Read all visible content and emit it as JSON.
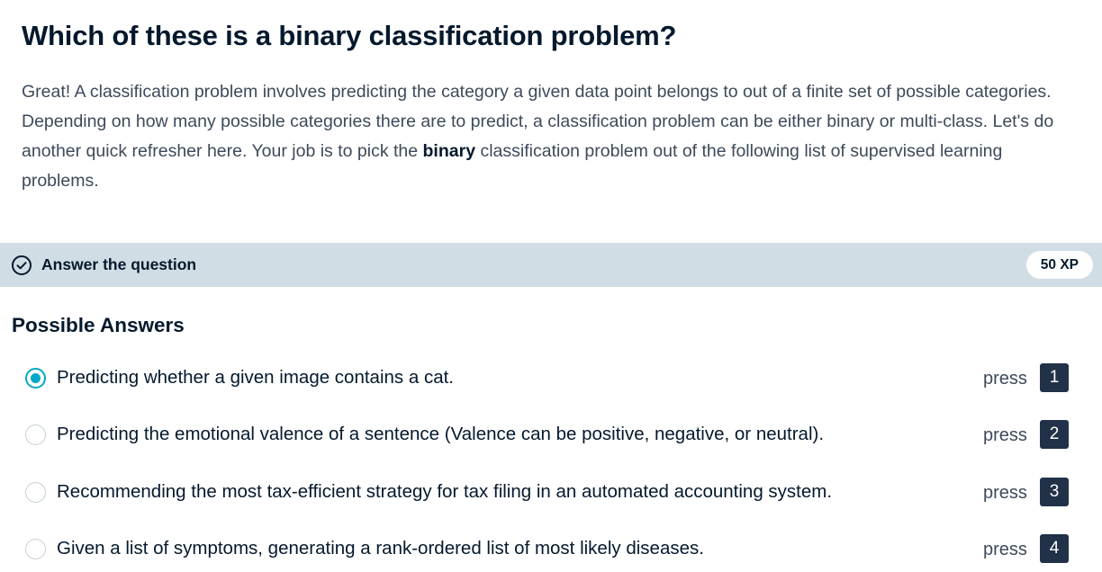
{
  "question": {
    "title": "Which of these is a binary classification problem?",
    "description_part1": "Great! A classification problem involves predicting the category a given data point belongs to out of a finite set of possible categories. Depending on how many possible categories there are to predict, a classification problem can be either binary or multi-class. Let's do another quick refresher here. Your job is to pick the ",
    "description_bold": "binary",
    "description_part2": " classification problem out of the following list of supervised learning problems."
  },
  "task_bar": {
    "icon": "check-circle-icon",
    "label": "Answer the question",
    "xp": "50 XP"
  },
  "answers": {
    "heading": "Possible Answers",
    "options": [
      {
        "text": "Predicting whether a given image contains a cat.",
        "press": "press",
        "key": "1",
        "selected": true
      },
      {
        "text": "Predicting the emotional valence of a sentence (Valence can be positive, negative, or neutral).",
        "press": "press",
        "key": "2",
        "selected": false
      },
      {
        "text": "Recommending the most tax-efficient strategy for tax filing in an automated accounting system.",
        "press": "press",
        "key": "3",
        "selected": false
      },
      {
        "text": "Given a list of symptoms, generating a rank-ordered list of most likely diseases.",
        "press": "press",
        "key": "4",
        "selected": false
      }
    ]
  },
  "colors": {
    "accent": "#03a9c6",
    "bar_background": "#d1dde4",
    "key_background": "#213147",
    "text_dark": "#05192d"
  }
}
